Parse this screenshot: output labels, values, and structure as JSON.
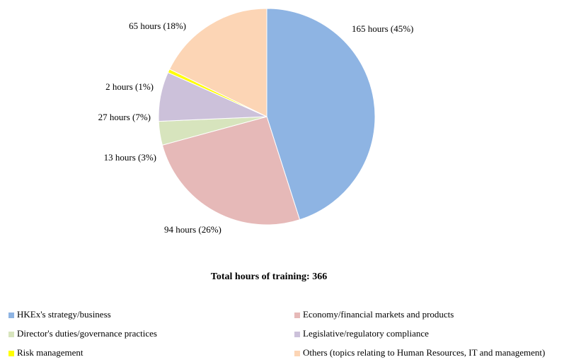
{
  "chart_data": {
    "type": "pie",
    "title": "Total hours of training: 366",
    "categories": [
      "HKEx's strategy/business",
      "Economy/financial markets and products",
      "Director's duties/governance practices",
      "Legislative/regulatory compliance",
      "Risk management",
      "Others (topics relating to Human Resources, IT and management)"
    ],
    "values": [
      165,
      94,
      13,
      27,
      2,
      65
    ],
    "value_labels": [
      "165 hours (45%)",
      "94 hours (26%)",
      "13 hours (3%)",
      "27 hours (7%)",
      "2 hours (1%)",
      "65 hours (18%)"
    ],
    "colors": [
      "#8eb4e3",
      "#e6b9b8",
      "#d7e4bd",
      "#ccc1da",
      "#ffff00",
      "#fcd5b5"
    ],
    "legend": "bottom"
  }
}
